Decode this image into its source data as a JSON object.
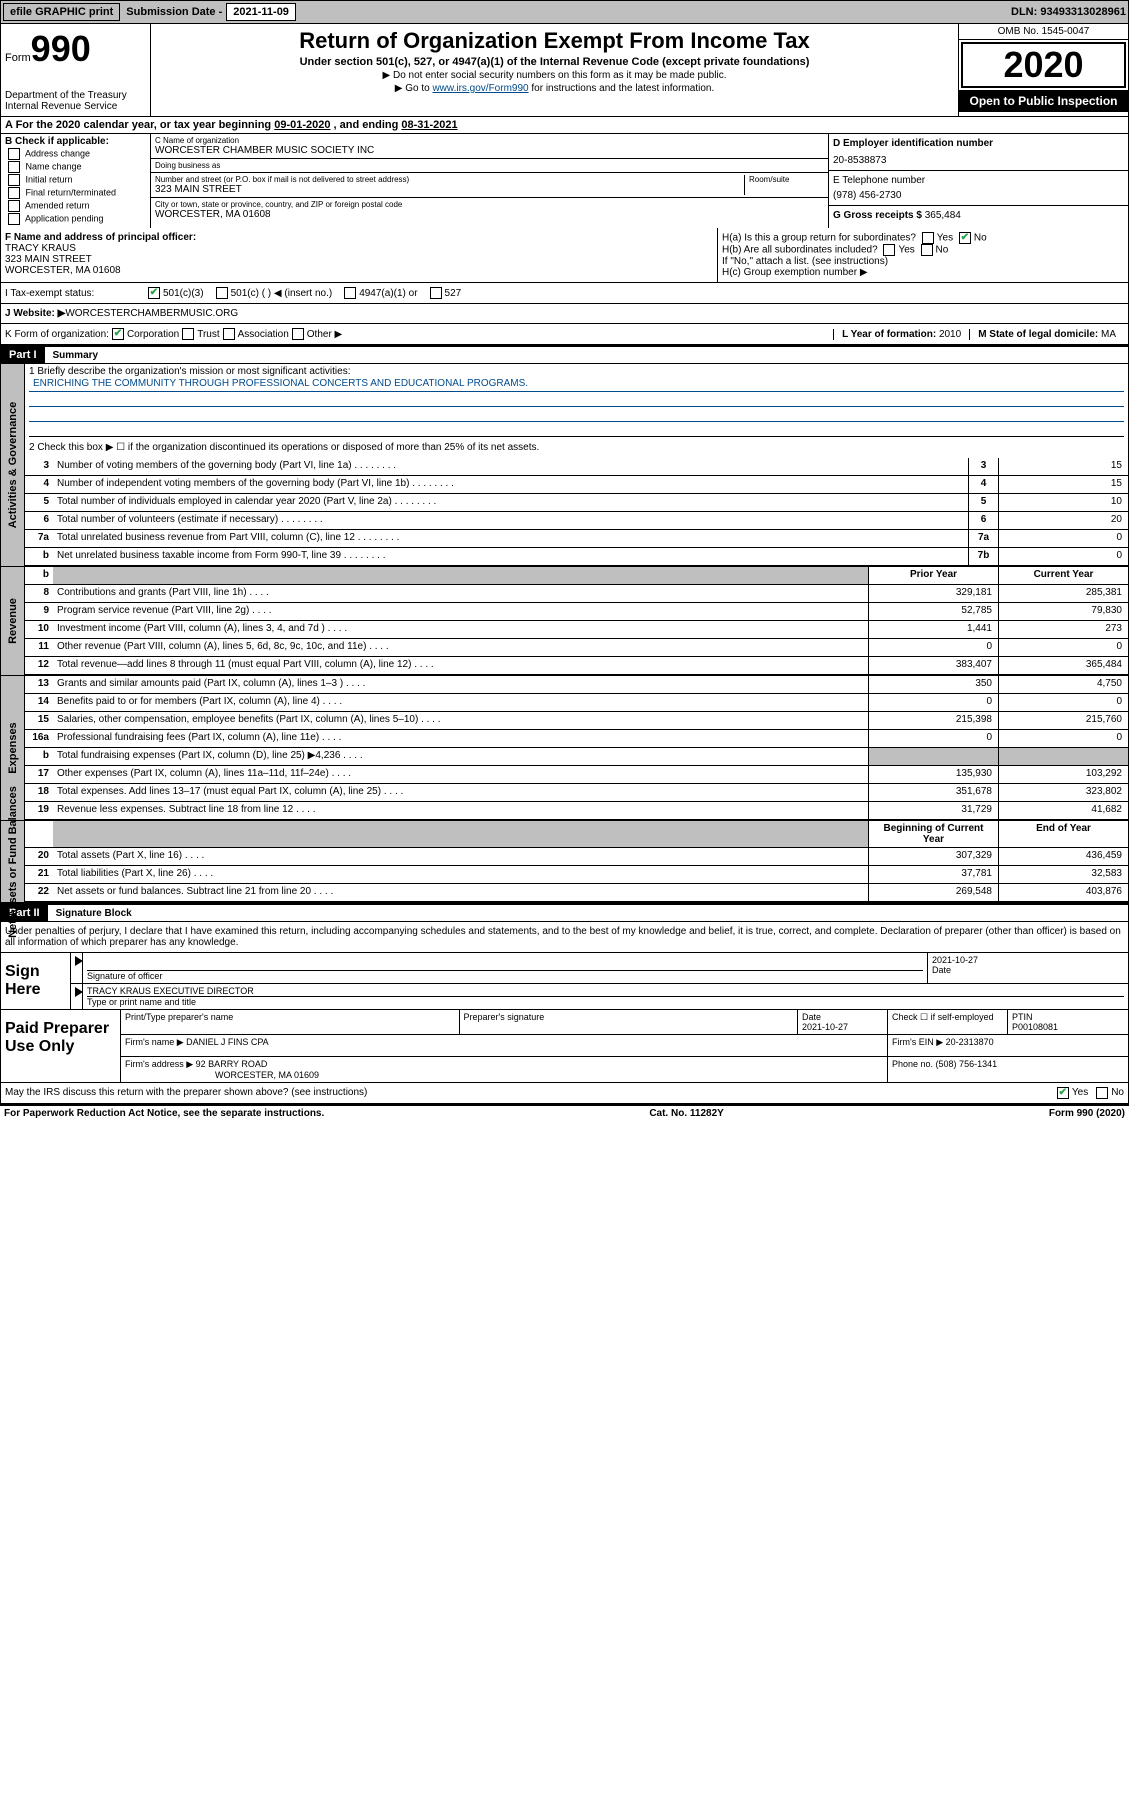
{
  "topbar": {
    "efile_label": "efile GRAPHIC print",
    "sub_date_label": "Submission Date - ",
    "sub_date": "2021-11-09",
    "dln_label": "DLN: ",
    "dln": "93493313028961"
  },
  "header": {
    "form_label": "Form",
    "form_num": "990",
    "dept": "Department of the Treasury",
    "irs": "Internal Revenue Service",
    "title": "Return of Organization Exempt From Income Tax",
    "subtitle": "Under section 501(c), 527, or 4947(a)(1) of the Internal Revenue Code (except private foundations)",
    "note1": "▶ Do not enter social security numbers on this form as it may be made public.",
    "note2_pre": "▶ Go to ",
    "note2_link": "www.irs.gov/Form990",
    "note2_post": " for instructions and the latest information.",
    "omb": "OMB No. 1545-0047",
    "year": "2020",
    "inspect": "Open to Public Inspection"
  },
  "period": {
    "label_a": "A For the 2020 calendar year, or tax year beginning ",
    "begin": "09-01-2020",
    "mid": " , and ending ",
    "end": "08-31-2021"
  },
  "sectionB": {
    "header": "B Check if applicable:",
    "items": [
      "Address change",
      "Name change",
      "Initial return",
      "Final return/terminated",
      "Amended return",
      "Application pending"
    ]
  },
  "sectionC": {
    "name_label": "C Name of organization",
    "name": "WORCESTER CHAMBER MUSIC SOCIETY INC",
    "dba_label": "Doing business as",
    "dba": "",
    "street_label": "Number and street (or P.O. box if mail is not delivered to street address)",
    "room_label": "Room/suite",
    "street": "323 MAIN STREET",
    "city_label": "City or town, state or province, country, and ZIP or foreign postal code",
    "city": "WORCESTER, MA  01608"
  },
  "sectionD": {
    "label": "D Employer identification number",
    "val": "20-8538873"
  },
  "sectionE": {
    "label": "E Telephone number",
    "val": "(978) 456-2730"
  },
  "sectionG": {
    "label": "G Gross receipts $ ",
    "val": "365,484"
  },
  "sectionF": {
    "label": "F Name and address of principal officer:",
    "name": "TRACY KRAUS",
    "street": "323 MAIN STREET",
    "city": "WORCESTER, MA  01608"
  },
  "sectionH": {
    "a": "H(a)  Is this a group return for subordinates?",
    "a_yes": "Yes",
    "a_no": "No",
    "b": "H(b)  Are all subordinates included?",
    "b_yes": "Yes",
    "b_no": "No",
    "b_note": "If \"No,\" attach a list. (see instructions)",
    "c": "H(c)  Group exemption number ▶"
  },
  "sectionI": {
    "label": "I   Tax-exempt status:",
    "opts": [
      "501(c)(3)",
      "501(c) (  ) ◀ (insert no.)",
      "4947(a)(1) or",
      "527"
    ]
  },
  "sectionJ": {
    "label": "J   Website: ▶",
    "val": " WORCESTERCHAMBERMUSIC.ORG"
  },
  "sectionK": {
    "label": "K Form of organization:",
    "opts": [
      "Corporation",
      "Trust",
      "Association",
      "Other ▶"
    ]
  },
  "sectionL": {
    "label": "L Year of formation: ",
    "val": "2010"
  },
  "sectionM": {
    "label": "M State of legal domicile: ",
    "val": "MA"
  },
  "partI": {
    "header": "Part I",
    "title": "Summary",
    "line1_label": "1   Briefly describe the organization's mission or most significant activities:",
    "mission": "ENRICHING THE COMMUNITY THROUGH PROFESSIONAL CONCERTS AND EDUCATIONAL PROGRAMS.",
    "line2": "2   Check this box ▶ ☐  if the organization discontinued its operations or disposed of more than 25% of its net assets."
  },
  "govLines": [
    {
      "n": "3",
      "t": "Number of voting members of the governing body (Part VI, line 1a)",
      "b": "3",
      "v": "15"
    },
    {
      "n": "4",
      "t": "Number of independent voting members of the governing body (Part VI, line 1b)",
      "b": "4",
      "v": "15"
    },
    {
      "n": "5",
      "t": "Total number of individuals employed in calendar year 2020 (Part V, line 2a)",
      "b": "5",
      "v": "10"
    },
    {
      "n": "6",
      "t": "Total number of volunteers (estimate if necessary)",
      "b": "6",
      "v": "20"
    },
    {
      "n": "7a",
      "t": "Total unrelated business revenue from Part VIII, column (C), line 12",
      "b": "7a",
      "v": "0"
    },
    {
      "n": "b",
      "t": "Net unrelated business taxable income from Form 990-T, line 39",
      "b": "7b",
      "v": "0"
    }
  ],
  "yearHead": {
    "prior": "Prior Year",
    "current": "Current Year"
  },
  "revLines": [
    {
      "n": "8",
      "t": "Contributions and grants (Part VIII, line 1h)",
      "p": "329,181",
      "c": "285,381"
    },
    {
      "n": "9",
      "t": "Program service revenue (Part VIII, line 2g)",
      "p": "52,785",
      "c": "79,830"
    },
    {
      "n": "10",
      "t": "Investment income (Part VIII, column (A), lines 3, 4, and 7d )",
      "p": "1,441",
      "c": "273"
    },
    {
      "n": "11",
      "t": "Other revenue (Part VIII, column (A), lines 5, 6d, 8c, 9c, 10c, and 11e)",
      "p": "0",
      "c": "0"
    },
    {
      "n": "12",
      "t": "Total revenue—add lines 8 through 11 (must equal Part VIII, column (A), line 12)",
      "p": "383,407",
      "c": "365,484"
    }
  ],
  "expLines": [
    {
      "n": "13",
      "t": "Grants and similar amounts paid (Part IX, column (A), lines 1–3 )",
      "p": "350",
      "c": "4,750"
    },
    {
      "n": "14",
      "t": "Benefits paid to or for members (Part IX, column (A), line 4)",
      "p": "0",
      "c": "0"
    },
    {
      "n": "15",
      "t": "Salaries, other compensation, employee benefits (Part IX, column (A), lines 5–10)",
      "p": "215,398",
      "c": "215,760"
    },
    {
      "n": "16a",
      "t": "Professional fundraising fees (Part IX, column (A), line 11e)",
      "p": "0",
      "c": "0"
    },
    {
      "n": "b",
      "t": "Total fundraising expenses (Part IX, column (D), line 25) ▶4,236",
      "p": "",
      "c": "",
      "shade": true
    },
    {
      "n": "17",
      "t": "Other expenses (Part IX, column (A), lines 11a–11d, 11f–24e)",
      "p": "135,930",
      "c": "103,292"
    },
    {
      "n": "18",
      "t": "Total expenses. Add lines 13–17 (must equal Part IX, column (A), line 25)",
      "p": "351,678",
      "c": "323,802"
    },
    {
      "n": "19",
      "t": "Revenue less expenses. Subtract line 18 from line 12",
      "p": "31,729",
      "c": "41,682"
    }
  ],
  "balHead": {
    "begin": "Beginning of Current Year",
    "end": "End of Year"
  },
  "balLines": [
    {
      "n": "20",
      "t": "Total assets (Part X, line 16)",
      "p": "307,329",
      "c": "436,459"
    },
    {
      "n": "21",
      "t": "Total liabilities (Part X, line 26)",
      "p": "37,781",
      "c": "32,583"
    },
    {
      "n": "22",
      "t": "Net assets or fund balances. Subtract line 21 from line 20",
      "p": "269,548",
      "c": "403,876"
    }
  ],
  "sideLabels": {
    "gov": "Activities & Governance",
    "rev": "Revenue",
    "exp": "Expenses",
    "bal": "Net Assets or Fund Balances"
  },
  "partII": {
    "header": "Part II",
    "title": "Signature Block",
    "decl": "Under penalties of perjury, I declare that I have examined this return, including accompanying schedules and statements, and to the best of my knowledge and belief, it is true, correct, and complete. Declaration of preparer (other than officer) is based on all information of which preparer has any knowledge."
  },
  "signHere": {
    "label": "Sign Here",
    "sig_officer": "Signature of officer",
    "date_label": "Date",
    "date": "2021-10-27",
    "name": "TRACY KRAUS  EXECUTIVE DIRECTOR",
    "type_label": "Type or print name and title"
  },
  "paidPrep": {
    "label": "Paid Preparer Use Only",
    "print_label": "Print/Type preparer's name",
    "sig_label": "Preparer's signature",
    "date_label": "Date",
    "date": "2021-10-27",
    "check_label": "Check ☐ if self-employed",
    "ptin_label": "PTIN",
    "ptin": "P00108081",
    "firm_name_label": "Firm's name   ▶",
    "firm_name": "DANIEL J FINS CPA",
    "firm_ein_label": "Firm's EIN ▶ ",
    "firm_ein": "20-2313870",
    "firm_addr_label": "Firm's address ▶",
    "firm_addr1": "92 BARRY ROAD",
    "firm_addr2": "WORCESTER, MA  01609",
    "phone_label": "Phone no. ",
    "phone": "(508) 756-1341",
    "discuss": "May the IRS discuss this return with the preparer shown above? (see instructions)",
    "yes": "Yes",
    "no": "No"
  },
  "footer": {
    "left": "For Paperwork Reduction Act Notice, see the separate instructions.",
    "mid": "Cat. No. 11282Y",
    "right": "Form 990 (2020)"
  }
}
